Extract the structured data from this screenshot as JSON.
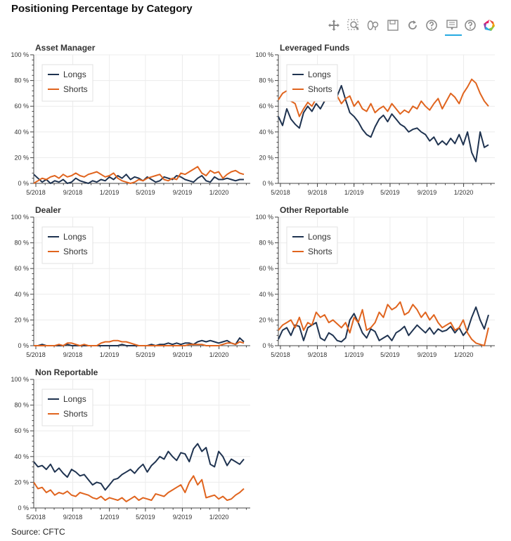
{
  "page": {
    "title": "Positioning Percentage by Category",
    "source": "Source: CFTC"
  },
  "toolbar": [
    {
      "name": "pan-icon",
      "active": true
    },
    {
      "name": "box-zoom-icon",
      "active": false
    },
    {
      "name": "wheel-zoom-icon",
      "active": false
    },
    {
      "name": "save-icon",
      "active": false
    },
    {
      "name": "reset-icon",
      "active": false
    },
    {
      "name": "help-icon",
      "active": false
    },
    {
      "name": "hover-icon",
      "active": true
    },
    {
      "name": "help-icon-2",
      "active": false
    },
    {
      "name": "bokeh-logo-icon",
      "active": false
    }
  ],
  "colors": {
    "longs": "#1f3350",
    "shorts": "#e0641e",
    "grid": "#ececec",
    "axis": "#444444"
  },
  "chart_data": [
    {
      "type": "line",
      "title": "Asset Manager",
      "x_range": [
        "2018-04-24",
        "2020-04-14"
      ],
      "xticks": [
        "5/2018",
        "9/2018",
        "1/2019",
        "5/2019",
        "9/2019",
        "1/2020"
      ],
      "ylim": [
        0,
        100
      ],
      "yticks": [
        "0 %",
        "20 %",
        "40 %",
        "60 %",
        "80 %",
        "100 %"
      ],
      "legend": "top-left",
      "series": [
        {
          "name": "Longs",
          "start": "2018-04-24",
          "step_days": 14,
          "values": [
            7,
            4,
            1,
            3,
            0,
            2,
            1,
            3,
            0,
            1,
            4,
            2,
            1,
            0,
            2,
            1,
            3,
            2,
            5,
            3,
            6,
            4,
            7,
            3,
            5,
            4,
            2,
            5,
            3,
            1,
            2,
            5,
            4,
            3,
            6,
            5,
            3,
            2,
            1,
            4,
            6,
            2,
            1,
            5,
            3,
            3,
            4,
            3,
            2,
            3,
            3
          ]
        },
        {
          "name": "Shorts",
          "start": "2018-04-24",
          "step_days": 14,
          "values": [
            0,
            2,
            4,
            3,
            5,
            6,
            4,
            7,
            5,
            6,
            8,
            6,
            5,
            7,
            8,
            9,
            7,
            5,
            6,
            8,
            4,
            2,
            1,
            0,
            1,
            3,
            2,
            4,
            5,
            6,
            7,
            3,
            2,
            4,
            3,
            8,
            7,
            9,
            11,
            13,
            8,
            6,
            10,
            8,
            9,
            4,
            7,
            9,
            10,
            8,
            7
          ]
        }
      ]
    },
    {
      "type": "line",
      "title": "Leveraged Funds",
      "x_range": [
        "2018-04-24",
        "2020-04-14"
      ],
      "xticks": [
        "5/2018",
        "9/2018",
        "1/2019",
        "5/2019",
        "9/2019",
        "1/2020"
      ],
      "ylim": [
        0,
        100
      ],
      "yticks": [
        "0 %",
        "20 %",
        "40 %",
        "60 %",
        "80 %",
        "100 %"
      ],
      "legend": "top-left",
      "series": [
        {
          "name": "Longs",
          "start": "2018-04-24",
          "step_days": 14,
          "values": [
            52,
            45,
            58,
            50,
            46,
            43,
            55,
            60,
            56,
            62,
            58,
            64,
            70,
            72,
            68,
            76,
            65,
            55,
            52,
            48,
            42,
            38,
            36,
            44,
            50,
            53,
            48,
            54,
            50,
            46,
            44,
            40,
            42,
            43,
            40,
            38,
            33,
            36,
            30,
            33,
            30,
            35,
            31,
            38,
            30,
            40,
            24,
            17,
            40,
            28,
            30
          ]
        },
        {
          "name": "Shorts",
          "start": "2018-04-24",
          "step_days": 14,
          "values": [
            65,
            70,
            72,
            64,
            62,
            52,
            58,
            63,
            60,
            66,
            68,
            64,
            70,
            72,
            68,
            62,
            66,
            68,
            60,
            64,
            58,
            56,
            62,
            55,
            58,
            60,
            56,
            62,
            58,
            54,
            57,
            55,
            60,
            58,
            64,
            60,
            57,
            62,
            66,
            58,
            64,
            70,
            67,
            62,
            70,
            75,
            81,
            78,
            70,
            64,
            60
          ]
        }
      ]
    },
    {
      "type": "line",
      "title": "Dealer",
      "x_range": [
        "2018-04-24",
        "2020-04-14"
      ],
      "xticks": [
        "5/2018",
        "9/2018",
        "1/2019",
        "5/2019",
        "9/2019",
        "1/2020"
      ],
      "ylim": [
        0,
        100
      ],
      "yticks": [
        "0 %",
        "20 %",
        "40 %",
        "60 %",
        "80 %",
        "100 %"
      ],
      "legend": "top-left",
      "series": [
        {
          "name": "Longs",
          "start": "2018-04-24",
          "step_days": 14,
          "values": [
            0,
            0,
            1,
            0,
            0,
            0,
            0,
            0,
            1,
            0,
            0,
            0,
            0,
            0,
            0,
            0,
            0,
            0,
            0,
            0,
            0,
            1,
            0,
            0,
            0,
            0,
            0,
            0,
            1,
            0,
            1,
            1,
            2,
            1,
            2,
            1,
            2,
            2,
            1,
            3,
            4,
            3,
            4,
            3,
            2,
            3,
            4,
            2,
            1,
            6,
            3
          ]
        },
        {
          "name": "Shorts",
          "start": "2018-04-24",
          "step_days": 14,
          "values": [
            0,
            0,
            0,
            0,
            0,
            0,
            1,
            0,
            2,
            2,
            1,
            0,
            1,
            0,
            0,
            0,
            2,
            3,
            3,
            4,
            4,
            3,
            3,
            2,
            1,
            0,
            0,
            0,
            0,
            0,
            0,
            0,
            0,
            0,
            0,
            0,
            0,
            1,
            1,
            1,
            1,
            0,
            0,
            0,
            0,
            1,
            2,
            2,
            1,
            3,
            2
          ]
        }
      ]
    },
    {
      "type": "line",
      "title": "Other Reportable",
      "x_range": [
        "2018-04-24",
        "2020-04-14"
      ],
      "xticks": [
        "5/2018",
        "9/2018",
        "1/2019",
        "5/2019",
        "9/2019",
        "1/2020"
      ],
      "ylim": [
        0,
        100
      ],
      "yticks": [
        "0 %",
        "20 %",
        "40 %",
        "60 %",
        "80 %",
        "100 %"
      ],
      "legend": "top-left",
      "series": [
        {
          "name": "Longs",
          "start": "2018-04-24",
          "step_days": 14,
          "values": [
            5,
            12,
            14,
            8,
            16,
            15,
            4,
            14,
            16,
            18,
            6,
            4,
            10,
            8,
            4,
            3,
            6,
            20,
            25,
            18,
            10,
            6,
            13,
            11,
            4,
            6,
            8,
            4,
            10,
            12,
            15,
            8,
            12,
            16,
            13,
            10,
            14,
            9,
            13,
            11,
            12,
            15,
            10,
            14,
            8,
            12,
            22,
            30,
            20,
            13,
            24
          ]
        },
        {
          "name": "Shorts",
          "start": "2018-04-24",
          "step_days": 14,
          "values": [
            12,
            16,
            18,
            20,
            14,
            22,
            12,
            18,
            16,
            26,
            22,
            24,
            18,
            20,
            17,
            14,
            18,
            10,
            22,
            18,
            28,
            12,
            14,
            18,
            26,
            22,
            32,
            28,
            30,
            34,
            24,
            26,
            32,
            28,
            22,
            26,
            20,
            24,
            18,
            14,
            16,
            18,
            12,
            14,
            20,
            10,
            5,
            2,
            1,
            0,
            14
          ]
        }
      ]
    },
    {
      "type": "line",
      "title": "Non Reportable",
      "x_range": [
        "2018-04-24",
        "2020-04-14"
      ],
      "xticks": [
        "5/2018",
        "9/2018",
        "1/2019",
        "5/2019",
        "9/2019",
        "1/2020"
      ],
      "ylim": [
        0,
        100
      ],
      "yticks": [
        "0 %",
        "20 %",
        "40 %",
        "60 %",
        "80 %",
        "100 %"
      ],
      "legend": "top-left",
      "series": [
        {
          "name": "Longs",
          "start": "2018-04-24",
          "step_days": 14,
          "values": [
            36,
            32,
            33,
            30,
            34,
            28,
            31,
            27,
            24,
            30,
            28,
            25,
            26,
            22,
            18,
            20,
            19,
            14,
            18,
            22,
            23,
            26,
            28,
            30,
            27,
            31,
            34,
            28,
            33,
            36,
            40,
            38,
            44,
            40,
            37,
            43,
            42,
            36,
            46,
            50,
            44,
            47,
            34,
            32,
            44,
            40,
            33,
            38,
            36,
            34,
            38
          ]
        },
        {
          "name": "Shorts",
          "start": "2018-04-24",
          "step_days": 14,
          "values": [
            20,
            15,
            16,
            12,
            14,
            10,
            12,
            11,
            13,
            10,
            9,
            12,
            11,
            10,
            8,
            7,
            9,
            6,
            8,
            7,
            6,
            8,
            5,
            7,
            9,
            6,
            8,
            7,
            6,
            11,
            10,
            9,
            12,
            14,
            16,
            18,
            12,
            20,
            25,
            18,
            22,
            8,
            9,
            10,
            7,
            9,
            6,
            7,
            10,
            12,
            15
          ]
        }
      ]
    }
  ]
}
